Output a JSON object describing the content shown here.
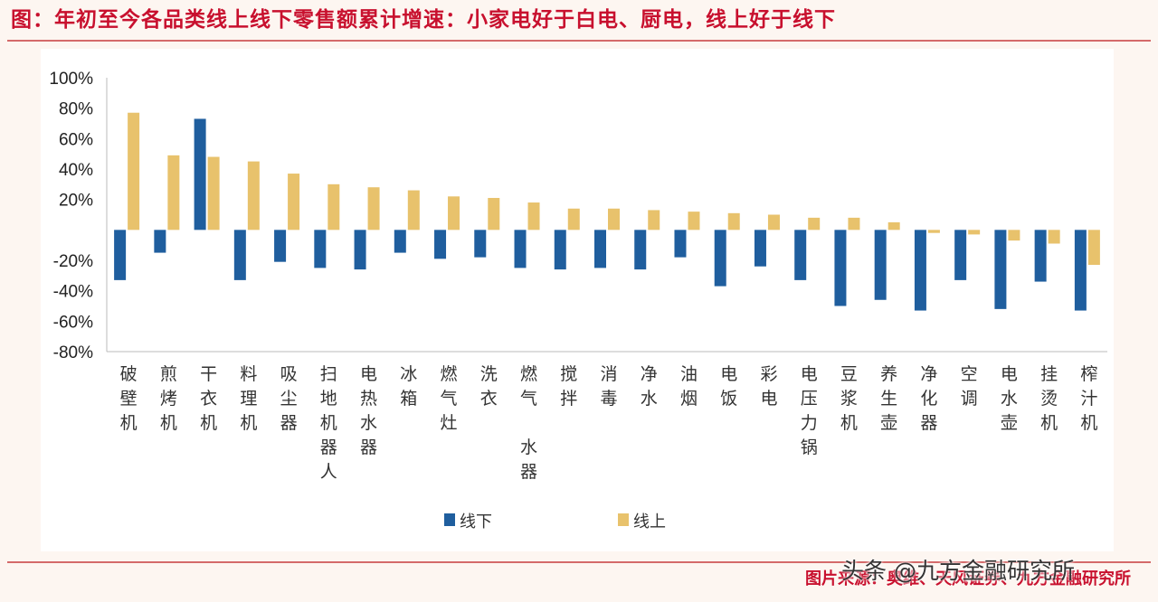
{
  "title": "图：年初至今各品类线上线下零售额累计增速：小家电好于白电、厨电，线上好于线下",
  "source": "图片来源：奥维、天风证券、九方金融研究所",
  "watermark": "头条 @九方金融研究所",
  "colors": {
    "offline": "#1f5e9e",
    "online": "#e8c26c",
    "title": "#c8102e"
  },
  "chart_data": {
    "type": "bar",
    "title": "",
    "xlabel": "",
    "ylabel": "",
    "ylim": [
      -80,
      100
    ],
    "y_ticks": [
      "100%",
      "80%",
      "60%",
      "40%",
      "20%",
      "-20%",
      "-40%",
      "-60%",
      "-80%"
    ],
    "y_tick_values": [
      100,
      80,
      60,
      40,
      20,
      -20,
      -40,
      -60,
      -80
    ],
    "legend_placement": "bottom",
    "categories": [
      "破壁机",
      "煎烤机",
      "干衣机",
      "料理机",
      "吸尘器",
      "扫地机器人",
      "电热水器",
      "冰箱",
      "燃气灶",
      "洗衣",
      "燃气 水器",
      "搅拌",
      "消毒",
      "净水",
      "油烟",
      "电饭",
      "彩电",
      "电压力锅",
      "豆浆机",
      "养生壶",
      "净化器",
      "空调",
      "电水壶",
      "挂烫机",
      "榨汁机"
    ],
    "series": [
      {
        "name": "线下",
        "values": [
          -33,
          -15,
          73,
          -33,
          -21,
          -25,
          -26,
          -15,
          -19,
          -18,
          -25,
          -26,
          -25,
          -26,
          -18,
          -37,
          -24,
          -33,
          -50,
          -46,
          -53,
          -33,
          -52,
          -34,
          -53
        ]
      },
      {
        "name": "线上",
        "values": [
          77,
          49,
          48,
          45,
          37,
          30,
          28,
          26,
          22,
          21,
          18,
          14,
          14,
          13,
          12,
          11,
          10,
          8,
          8,
          5,
          -2,
          -3,
          -7,
          -9,
          -23
        ]
      }
    ]
  }
}
